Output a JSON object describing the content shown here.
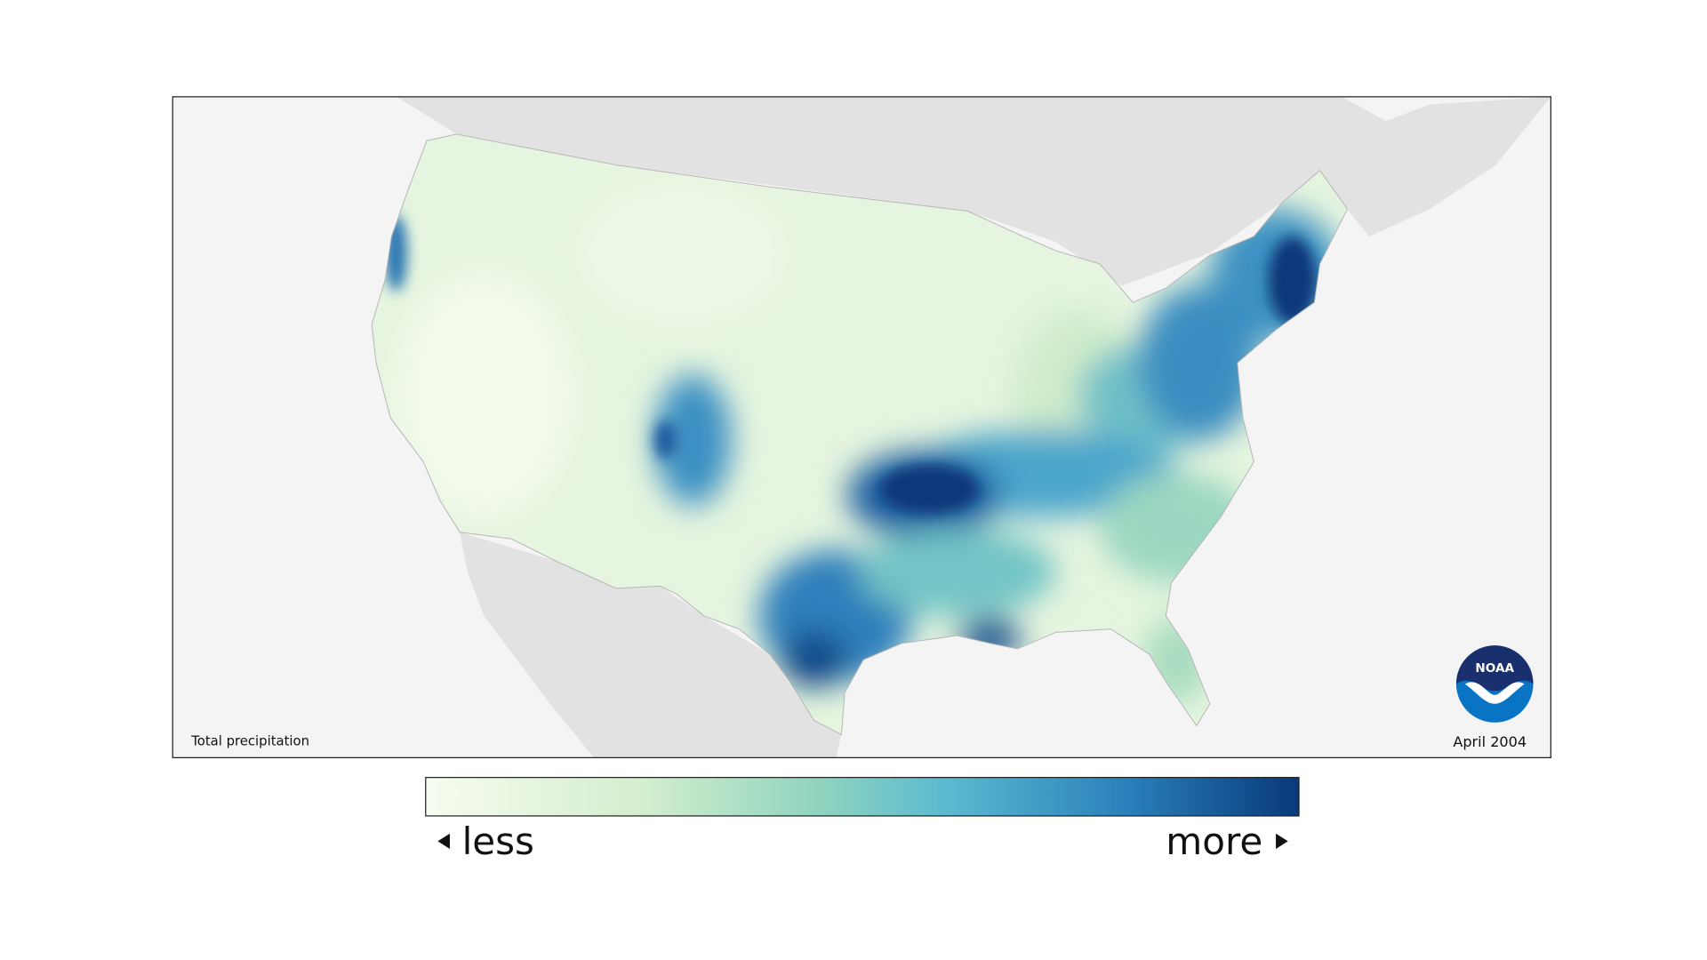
{
  "map": {
    "caption": "Total precipitation",
    "date": "April 2004"
  },
  "logo": {
    "text": "NOAA"
  },
  "legend": {
    "less": "less",
    "more": "more"
  }
}
